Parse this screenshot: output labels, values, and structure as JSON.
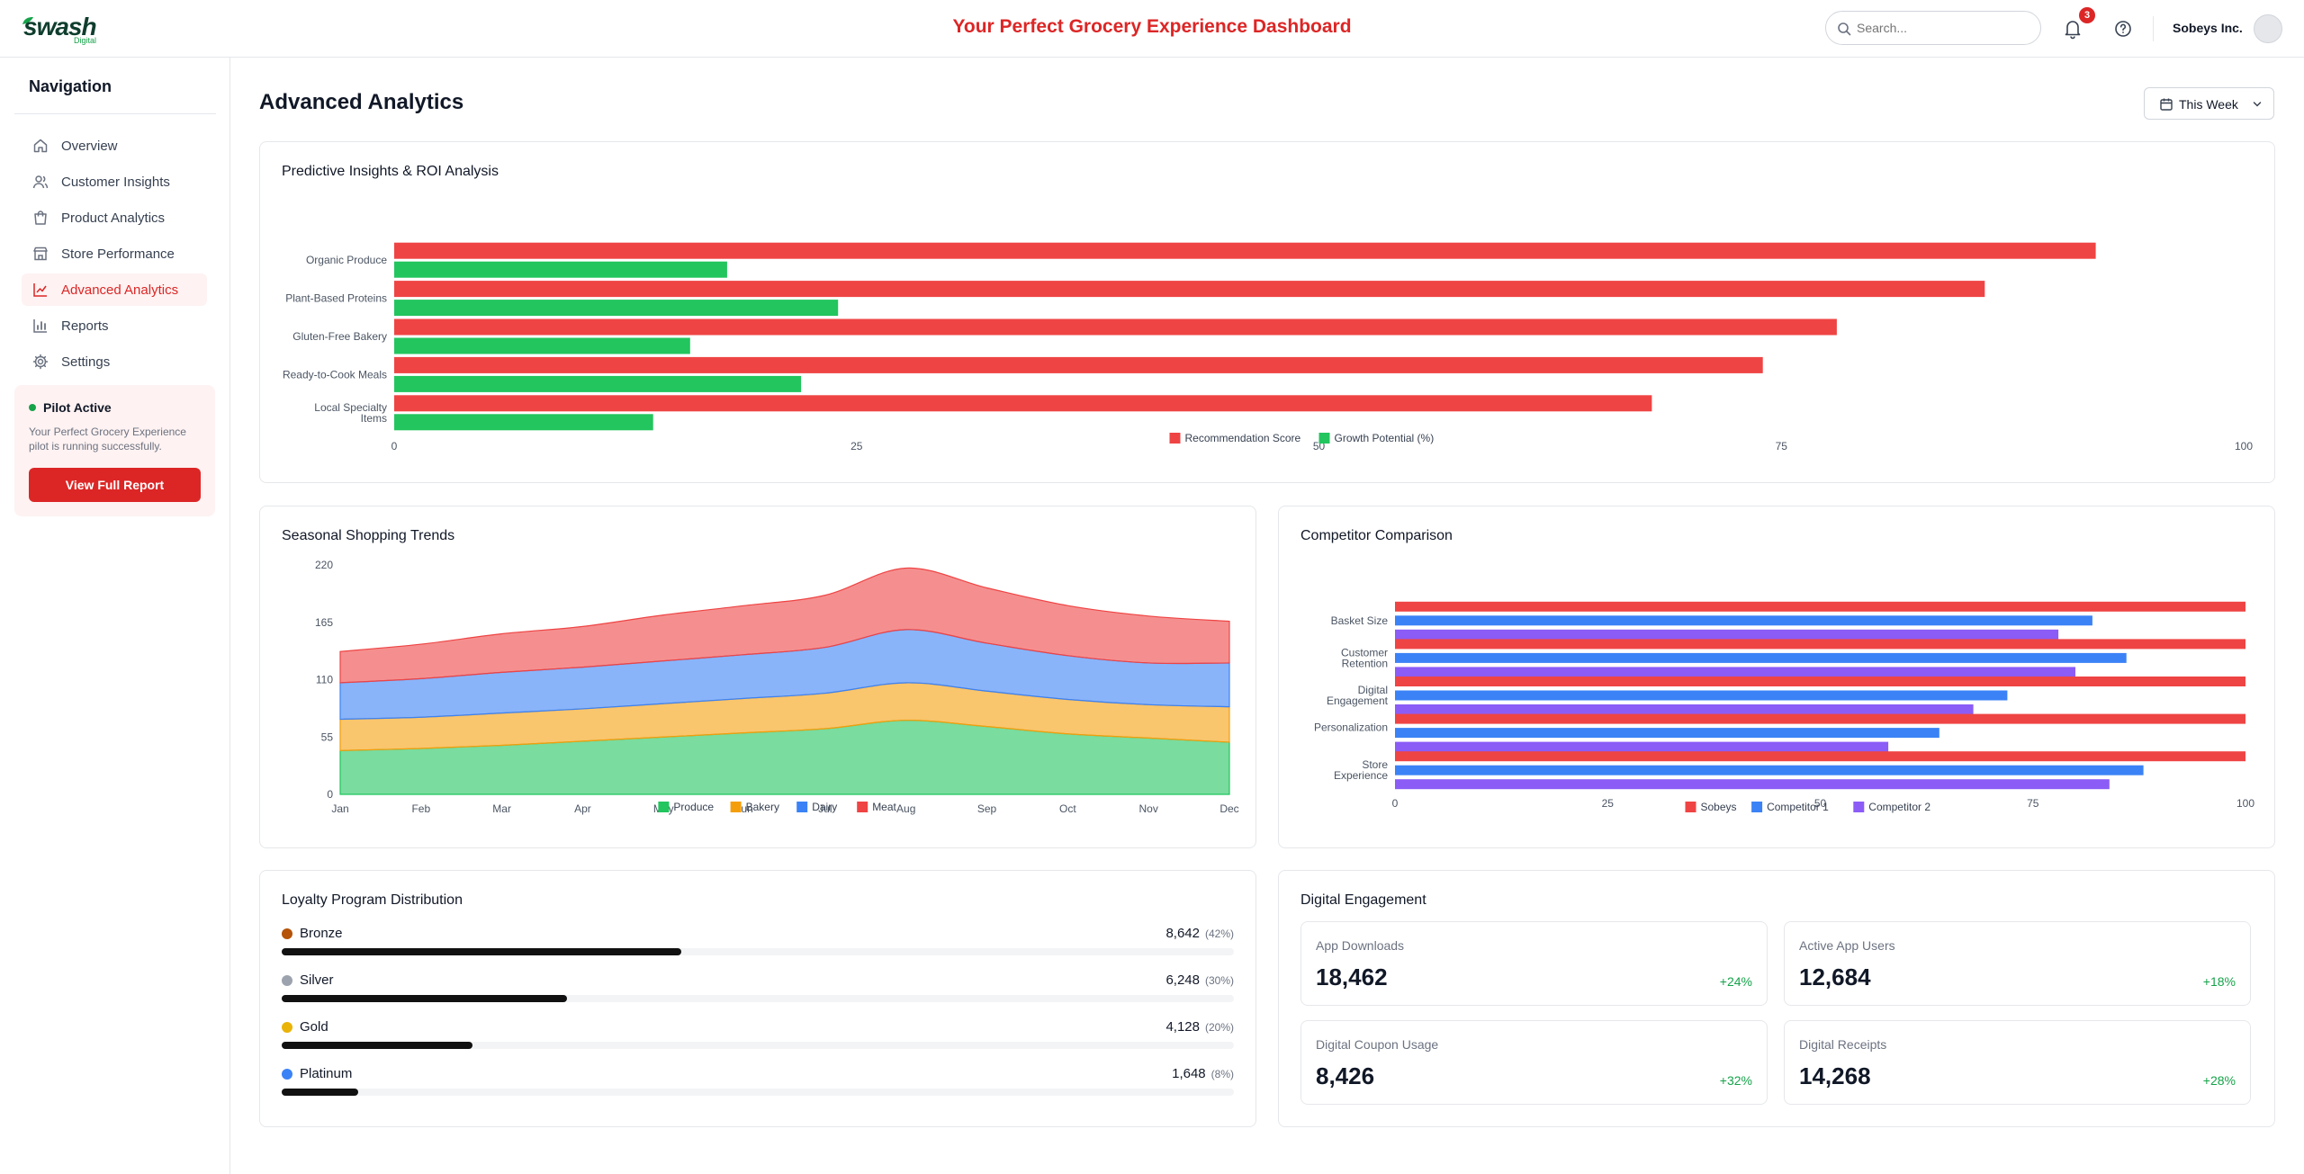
{
  "header": {
    "logo_text": "swash",
    "logo_sub": "Digital",
    "title": "Your Perfect Grocery Experience Dashboard",
    "search_placeholder": "Search...",
    "notification_count": "3",
    "company": "Sobeys Inc."
  },
  "sidebar": {
    "title": "Navigation",
    "items": [
      {
        "label": "Overview",
        "icon": "home-icon"
      },
      {
        "label": "Customer Insights",
        "icon": "users-icon"
      },
      {
        "label": "Product Analytics",
        "icon": "shopping-bag-icon"
      },
      {
        "label": "Store Performance",
        "icon": "store-icon"
      },
      {
        "label": "Advanced Analytics",
        "icon": "line-chart-icon"
      },
      {
        "label": "Reports",
        "icon": "bar-chart-icon"
      },
      {
        "label": "Settings",
        "icon": "gear-icon"
      }
    ],
    "active_index": 4,
    "pilot": {
      "title": "Pilot Active",
      "description": "Your Perfect Grocery Experience pilot is running successfully.",
      "button": "View Full Report"
    }
  },
  "main": {
    "title": "Advanced Analytics",
    "range_label": "This Week"
  },
  "colors": {
    "red": "#ef4444",
    "green": "#22c55e",
    "blue": "#3b82f6",
    "purple": "#8b5cf6",
    "orange": "#f59e0b",
    "accent": "#dc2626"
  },
  "chart_data": [
    {
      "type": "bar",
      "orientation": "horizontal",
      "title": "Predictive Insights & ROI Analysis",
      "categories": [
        "Organic Produce",
        "Plant-Based Proteins",
        "Gluten-Free Bakery",
        "Ready-to-Cook Meals",
        "Local Specialty Items"
      ],
      "series": [
        {
          "name": "Recommendation Score",
          "values": [
            92,
            86,
            78,
            74,
            68
          ]
        },
        {
          "name": "Growth Potential (%)",
          "values": [
            18,
            24,
            16,
            22,
            14
          ]
        }
      ],
      "xlim": [
        0,
        100
      ],
      "xticks": [
        0,
        25,
        50,
        75,
        100
      ],
      "legend": "bottom"
    },
    {
      "type": "area",
      "stacked": true,
      "title": "Seasonal Shopping Trends",
      "categories": [
        "Jan",
        "Feb",
        "Mar",
        "Apr",
        "May",
        "Jun",
        "Jul",
        "Aug",
        "Sep",
        "Oct",
        "Nov",
        "Dec"
      ],
      "series": [
        {
          "name": "Produce",
          "values": [
            42,
            44,
            47,
            51,
            55,
            59,
            63,
            71,
            65,
            58,
            54,
            50
          ]
        },
        {
          "name": "Bakery",
          "values": [
            30,
            30,
            31,
            31,
            32,
            33,
            34,
            36,
            34,
            33,
            32,
            34
          ]
        },
        {
          "name": "Dairy",
          "values": [
            35,
            37,
            39,
            40,
            41,
            42,
            44,
            51,
            46,
            42,
            40,
            42
          ]
        },
        {
          "name": "Meat",
          "values": [
            30,
            33,
            37,
            39,
            44,
            47,
            50,
            59,
            53,
            48,
            45,
            40
          ]
        }
      ],
      "ylim": [
        0,
        220
      ],
      "yticks": [
        0,
        55,
        110,
        165,
        220
      ],
      "legend": "bottom"
    },
    {
      "type": "bar",
      "orientation": "horizontal",
      "title": "Competitor Comparison",
      "categories": [
        "Basket Size",
        "Customer Retention",
        "Digital Engagement",
        "Personalization",
        "Store Experience"
      ],
      "series": [
        {
          "name": "Sobeys",
          "values": [
            100,
            100,
            100,
            100,
            100
          ]
        },
        {
          "name": "Competitor 1",
          "values": [
            82,
            86,
            72,
            64,
            88
          ]
        },
        {
          "name": "Competitor 2",
          "values": [
            78,
            80,
            68,
            58,
            84
          ]
        }
      ],
      "xlim": [
        0,
        100
      ],
      "xticks": [
        0,
        25,
        50,
        75,
        100
      ],
      "legend": "bottom"
    }
  ],
  "loyalty": {
    "title": "Loyalty Program Distribution",
    "tiers": [
      {
        "name": "Bronze",
        "value": "8,642",
        "pct": "(42%)",
        "fraction": 0.42,
        "color": "#b45309"
      },
      {
        "name": "Silver",
        "value": "6,248",
        "pct": "(30%)",
        "fraction": 0.3,
        "color": "#9ca3af"
      },
      {
        "name": "Gold",
        "value": "4,128",
        "pct": "(20%)",
        "fraction": 0.2,
        "color": "#eab308"
      },
      {
        "name": "Platinum",
        "value": "1,648",
        "pct": "(8%)",
        "fraction": 0.08,
        "color": "#3b82f6"
      }
    ]
  },
  "digital": {
    "title": "Digital Engagement",
    "metrics": [
      {
        "label": "App Downloads",
        "value": "18,462",
        "change": "+24%"
      },
      {
        "label": "Active App Users",
        "value": "12,684",
        "change": "+18%"
      },
      {
        "label": "Digital Coupon Usage",
        "value": "8,426",
        "change": "+32%"
      },
      {
        "label": "Digital Receipts",
        "value": "14,268",
        "change": "+28%"
      }
    ]
  }
}
